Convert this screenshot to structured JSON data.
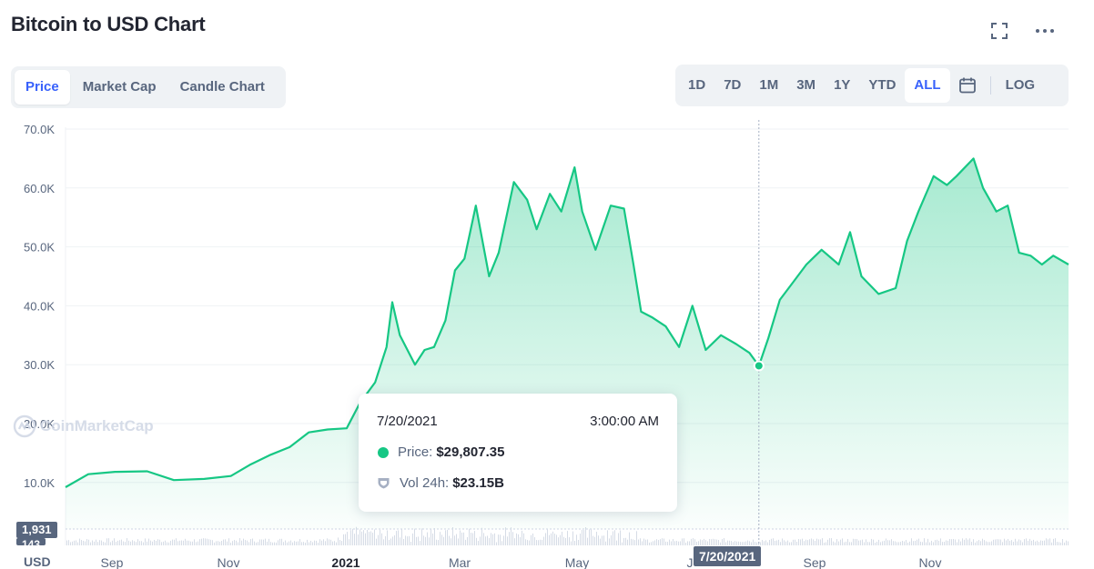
{
  "header": {
    "title": "Bitcoin to USD Chart"
  },
  "tabs": [
    {
      "label": "Price",
      "active": true
    },
    {
      "label": "Market Cap",
      "active": false
    },
    {
      "label": "Candle Chart",
      "active": false
    }
  ],
  "ranges": [
    {
      "label": "1D",
      "active": false
    },
    {
      "label": "7D",
      "active": false
    },
    {
      "label": "1M",
      "active": false
    },
    {
      "label": "3M",
      "active": false
    },
    {
      "label": "1Y",
      "active": false
    },
    {
      "label": "YTD",
      "active": false
    },
    {
      "label": "ALL",
      "active": true
    }
  ],
  "scale_toggle": "LOG",
  "icons": {
    "fullscreen": "fullscreen-icon",
    "more": "more-horizontal-icon",
    "calendar": "calendar-icon",
    "watermark": "coinmarketcap-logo-icon",
    "volume": "shield-icon"
  },
  "watermark": "CoinMarketCap",
  "tooltip": {
    "date": "7/20/2021",
    "time": "3:00:00 AM",
    "price_label": "Price:",
    "price_value": "$29,807.35",
    "volume_label": "Vol 24h:",
    "volume_value": "$23.15B"
  },
  "currency_label": "USD",
  "volume_axis": {
    "top_label": "1,931",
    "bottom_label": "143"
  },
  "crosshair_date_label": "7/20/2021",
  "colors": {
    "accent": "#3861fb",
    "line": "#16c784",
    "text": "#222531",
    "muted": "#58667e"
  },
  "chart_data": {
    "type": "area",
    "y_ticks": [
      "70.0K",
      "60.0K",
      "50.0K",
      "40.0K",
      "30.0K",
      "20.0K",
      "10.0K"
    ],
    "y_tick_values": [
      70000,
      60000,
      50000,
      40000,
      30000,
      20000,
      10000
    ],
    "ylim": [
      2000,
      70000
    ],
    "x_ticks": [
      "Sep",
      "Nov",
      "2021",
      "Mar",
      "May",
      "J",
      "Sep",
      "Nov"
    ],
    "xlim": [
      "2020-07-20",
      "2021-12-30"
    ],
    "crosshair_x": "2021-07-20",
    "series": [
      {
        "x": [
          "2020-07-20",
          "2020-08-01",
          "2020-08-15",
          "2020-09-01",
          "2020-09-15",
          "2020-10-01",
          "2020-10-15",
          "2020-10-25",
          "2020-11-05",
          "2020-11-15",
          "2020-11-25",
          "2020-12-05",
          "2020-12-15",
          "2020-12-22",
          "2020-12-30",
          "2021-01-05",
          "2021-01-08",
          "2021-01-12",
          "2021-01-20",
          "2021-01-25",
          "2021-01-30",
          "2021-02-05",
          "2021-02-10",
          "2021-02-15",
          "2021-02-21",
          "2021-02-28",
          "2021-03-05",
          "2021-03-13",
          "2021-03-20",
          "2021-03-25",
          "2021-04-01",
          "2021-04-07",
          "2021-04-14",
          "2021-04-18",
          "2021-04-25",
          "2021-05-03",
          "2021-05-10",
          "2021-05-15",
          "2021-05-19",
          "2021-05-25",
          "2021-06-01",
          "2021-06-08",
          "2021-06-15",
          "2021-06-22",
          "2021-06-30",
          "2021-07-08",
          "2021-07-15",
          "2021-07-20",
          "2021-07-25",
          "2021-07-31",
          "2021-08-07",
          "2021-08-14",
          "2021-08-22",
          "2021-08-31",
          "2021-09-06",
          "2021-09-12",
          "2021-09-21",
          "2021-09-30",
          "2021-10-06",
          "2021-10-12",
          "2021-10-20",
          "2021-10-27",
          "2021-11-01",
          "2021-11-10",
          "2021-11-15",
          "2021-11-22",
          "2021-11-28",
          "2021-12-04",
          "2021-12-10",
          "2021-12-16",
          "2021-12-22",
          "2021-12-30"
        ],
        "y": [
          9200,
          11400,
          11800,
          11900,
          10400,
          10600,
          11100,
          13000,
          14700,
          16000,
          18500,
          19000,
          19200,
          23500,
          27000,
          33000,
          40600,
          35000,
          30000,
          32500,
          33000,
          37500,
          46000,
          48000,
          57000,
          45000,
          49000,
          61000,
          58000,
          53000,
          59000,
          56000,
          63500,
          56000,
          49500,
          57000,
          56500,
          47000,
          39000,
          38000,
          36500,
          33000,
          40000,
          32500,
          35000,
          33500,
          32000,
          29807,
          34500,
          41000,
          44000,
          47000,
          49500,
          47000,
          52500,
          45000,
          42000,
          43000,
          51000,
          56000,
          62000,
          60500,
          62000,
          65000,
          60000,
          56000,
          57000,
          49000,
          48500,
          47000,
          48500,
          47000
        ]
      }
    ]
  }
}
